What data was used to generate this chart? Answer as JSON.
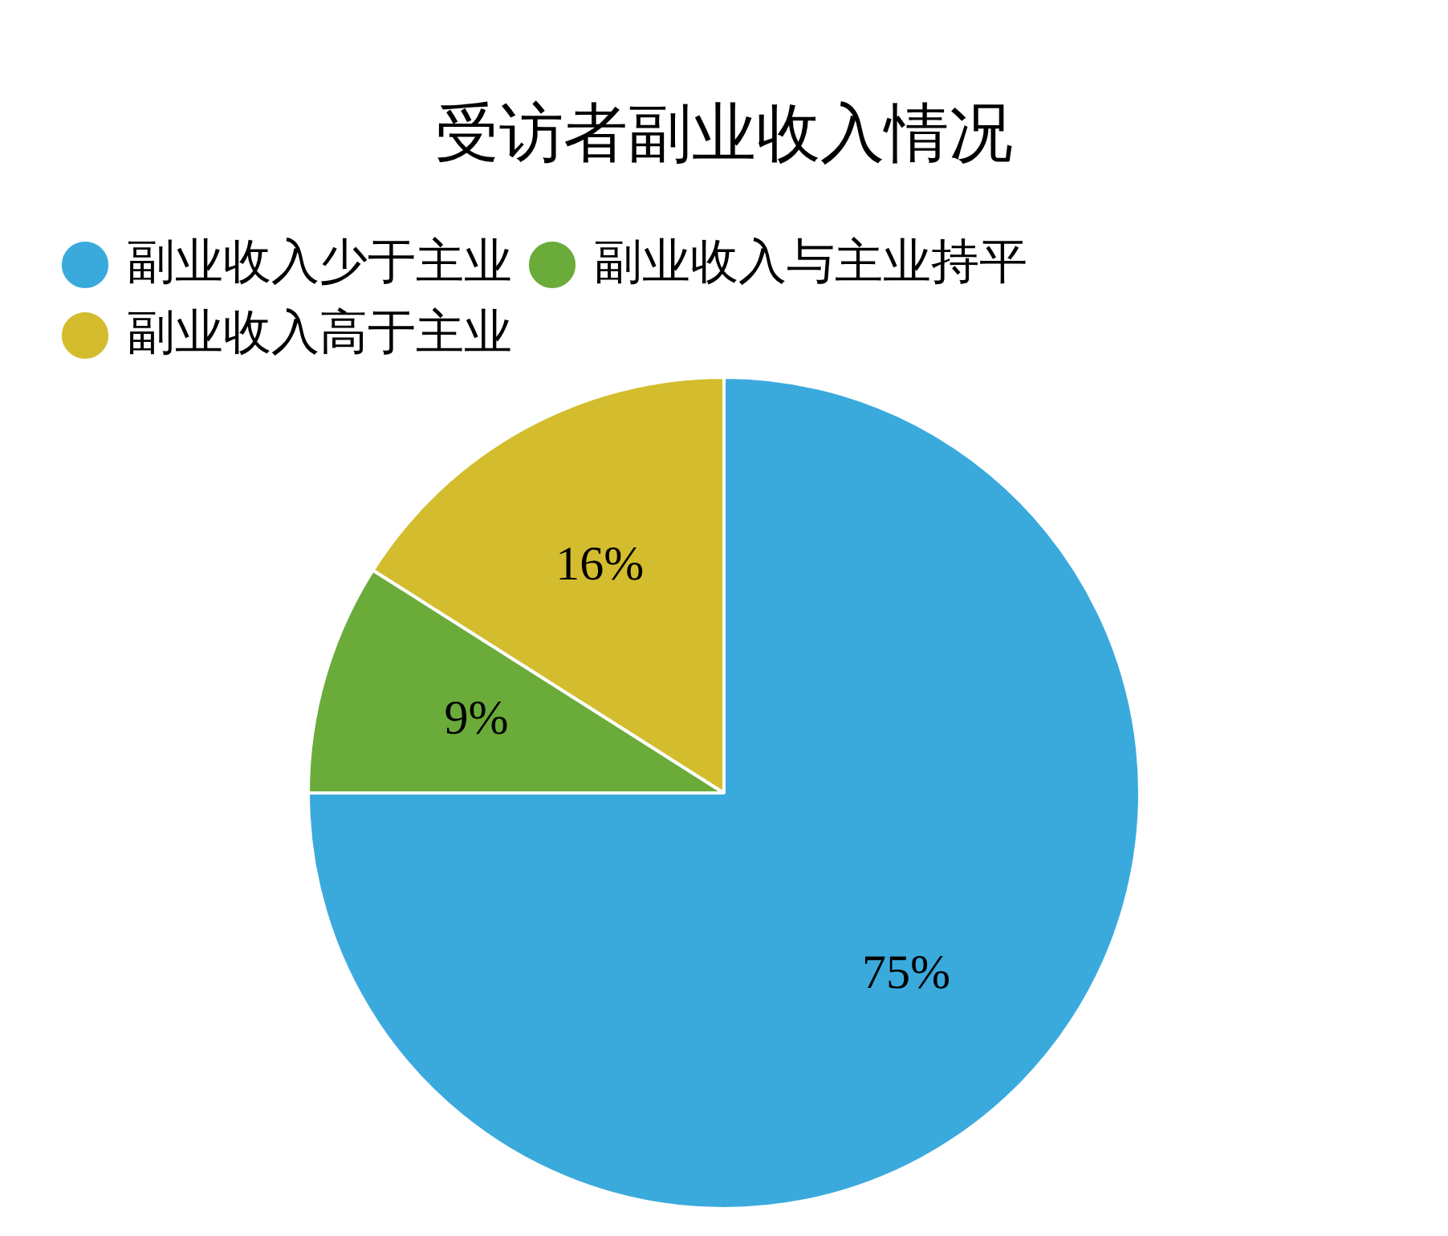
{
  "chart_data": {
    "type": "pie",
    "title": "受访者副业收入情况",
    "categories": [
      "副业收入少于主业",
      "副业收入与主业持平",
      "副业收入高于主业"
    ],
    "values": [
      75,
      9,
      16
    ],
    "colors": [
      "#3aaadd",
      "#6aab3a",
      "#d3bd2e"
    ],
    "value_labels": [
      "75%",
      "9%",
      "16%"
    ],
    "legend": "top left"
  }
}
